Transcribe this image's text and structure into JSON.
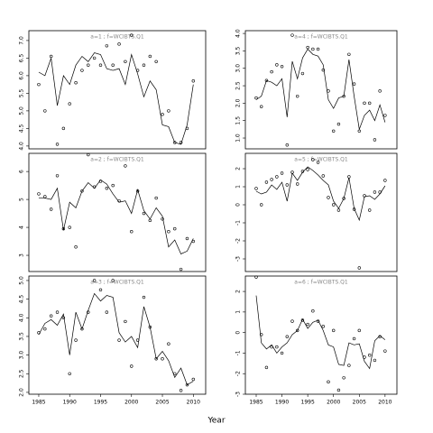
{
  "xlabel": "Year",
  "chart_data": [
    {
      "type": "line",
      "title": "a=1 ; f=WCIBTS.Q1",
      "x": [
        1985,
        1986,
        1987,
        1988,
        1989,
        1990,
        1991,
        1992,
        1993,
        1994,
        1995,
        1996,
        1997,
        1998,
        1999,
        2000,
        2001,
        2002,
        2003,
        2004,
        2005,
        2006,
        2007,
        2008,
        2009,
        2010
      ],
      "series": [
        {
          "style": "points",
          "color": "#000000",
          "values": [
            5.75,
            5.0,
            6.55,
            4.05,
            4.5,
            5.2,
            5.8,
            6.15,
            6.3,
            6.5,
            6.3,
            6.85,
            6.3,
            6.9,
            6.4,
            7.15,
            6.15,
            6.3,
            6.55,
            6.4,
            4.9,
            5.0,
            4.1,
            4.1,
            4.5,
            5.85
          ]
        },
        {
          "style": "line",
          "color": "#000000",
          "values": [
            6.1,
            6.0,
            6.5,
            5.15,
            6.0,
            5.75,
            6.3,
            6.55,
            6.4,
            6.65,
            6.6,
            6.2,
            6.15,
            6.2,
            5.75,
            6.6,
            6.05,
            5.4,
            5.85,
            5.6,
            4.6,
            4.55,
            4.1,
            4.05,
            4.6,
            5.75
          ]
        }
      ],
      "xlim": [
        1983.4,
        2012.0
      ],
      "ylim": [
        3.92,
        7.28
      ],
      "yticks": [
        {
          "value": 4.0,
          "label": "4.0"
        },
        {
          "value": 4.5,
          "label": "4.5"
        },
        {
          "value": 5.0,
          "label": "5.0"
        },
        {
          "value": 5.5,
          "label": "5.5"
        },
        {
          "value": 6.0,
          "label": "6.0"
        },
        {
          "value": 6.5,
          "label": "6.5"
        },
        {
          "value": 7.0,
          "label": "7.0"
        }
      ]
    },
    {
      "type": "line",
      "title": "a=2 ; f=WCIBTS.Q1",
      "x": [
        1985,
        1986,
        1987,
        1988,
        1989,
        1990,
        1991,
        1992,
        1993,
        1994,
        1995,
        1996,
        1997,
        1998,
        1999,
        2000,
        2001,
        2002,
        2003,
        2004,
        2005,
        2006,
        2007,
        2008,
        2009,
        2010
      ],
      "series": [
        {
          "style": "points",
          "color": "#000000",
          "values": [
            5.2,
            5.1,
            4.65,
            5.85,
            3.95,
            4.0,
            3.3,
            5.3,
            6.6,
            5.45,
            5.65,
            5.4,
            5.5,
            4.95,
            6.2,
            3.85,
            5.3,
            4.5,
            4.25,
            5.05,
            4.3,
            3.85,
            3.95,
            2.5,
            3.6,
            3.5
          ]
        },
        {
          "style": "line",
          "color": "#000000",
          "values": [
            5.05,
            5.05,
            5.0,
            5.4,
            3.9,
            4.9,
            4.7,
            5.3,
            5.6,
            5.4,
            5.7,
            5.55,
            5.2,
            4.9,
            4.95,
            4.5,
            5.35,
            4.6,
            4.3,
            4.7,
            4.4,
            3.3,
            3.55,
            3.05,
            3.15,
            3.6
          ]
        }
      ],
      "xlim": [
        1983.4,
        2012.0
      ],
      "ylim": [
        2.42,
        6.65
      ],
      "yticks": [
        3,
        4,
        5,
        6
      ]
    },
    {
      "type": "line",
      "title": "a=3 ; f=WCIBTS.Q1",
      "x": [
        1985,
        1986,
        1987,
        1988,
        1989,
        1990,
        1991,
        1992,
        1993,
        1994,
        1995,
        1996,
        1997,
        1998,
        1999,
        2000,
        2001,
        2002,
        2003,
        2004,
        2005,
        2006,
        2007,
        2008,
        2009,
        2010
      ],
      "series": [
        {
          "style": "points",
          "color": "#000000",
          "values": [
            3.6,
            3.7,
            4.05,
            4.15,
            4.0,
            2.5,
            3.4,
            3.7,
            4.15,
            5.0,
            4.75,
            4.15,
            5.0,
            3.4,
            3.9,
            2.7,
            3.4,
            4.55,
            3.75,
            2.9,
            2.9,
            3.3,
            2.5,
            2.05,
            2.2,
            2.35
          ]
        },
        {
          "style": "line",
          "color": "#000000",
          "values": [
            3.55,
            3.85,
            3.95,
            3.8,
            4.1,
            3.0,
            4.15,
            3.7,
            4.2,
            4.65,
            4.45,
            4.6,
            4.55,
            3.6,
            3.35,
            3.5,
            3.2,
            4.3,
            3.75,
            2.9,
            3.1,
            2.85,
            2.4,
            2.65,
            2.2,
            2.3
          ]
        }
      ],
      "xlim": [
        1983.4,
        2012.0
      ],
      "ylim": [
        1.95,
        5.12
      ],
      "yticks": [
        {
          "value": 2.0,
          "label": "2.0"
        },
        {
          "value": 2.5,
          "label": "2.5"
        },
        {
          "value": 3.0,
          "label": "3.0"
        },
        {
          "value": 3.5,
          "label": "3.5"
        },
        {
          "value": 4.0,
          "label": "4.0"
        },
        {
          "value": 4.5,
          "label": "4.5"
        },
        {
          "value": 5.0,
          "label": "5.0"
        }
      ],
      "xticks": [
        1985,
        1990,
        1995,
        2000,
        2005,
        2010
      ]
    },
    {
      "type": "line",
      "title": "a=4 ; f=WCIBTS.Q1",
      "x": [
        1985,
        1986,
        1987,
        1988,
        1989,
        1990,
        1991,
        1992,
        1993,
        1994,
        1995,
        1996,
        1997,
        1998,
        1999,
        2000,
        2001,
        2002,
        2003,
        2004,
        2005,
        2006,
        2007,
        2008,
        2009,
        2010
      ],
      "series": [
        {
          "style": "points",
          "color": "#000000",
          "values": [
            2.15,
            1.9,
            2.65,
            2.9,
            3.1,
            3.05,
            0.8,
            3.95,
            2.2,
            2.85,
            3.6,
            3.55,
            3.55,
            2.95,
            2.35,
            1.2,
            1.4,
            2.2,
            3.4,
            2.55,
            1.2,
            2.0,
            2.0,
            0.95,
            2.35,
            1.65
          ]
        },
        {
          "style": "line",
          "color": "#000000",
          "values": [
            2.1,
            2.2,
            2.65,
            2.6,
            2.5,
            2.7,
            1.6,
            3.2,
            2.7,
            3.3,
            3.55,
            3.4,
            3.35,
            3.1,
            2.1,
            1.85,
            2.15,
            2.2,
            3.25,
            2.2,
            1.25,
            1.65,
            1.8,
            1.5,
            1.95,
            1.45
          ]
        }
      ],
      "xlim": [
        1982.9,
        2012.3
      ],
      "ylim": [
        0.69,
        4.08
      ],
      "yticks": [
        {
          "value": 1.0,
          "label": "1.0"
        },
        {
          "value": 1.5,
          "label": "1.5"
        },
        {
          "value": 2.0,
          "label": "2.0"
        },
        {
          "value": 2.5,
          "label": "2.5"
        },
        {
          "value": 3.0,
          "label": "3.0"
        },
        {
          "value": 3.5,
          "label": "3.5"
        },
        {
          "value": 4.0,
          "label": "4.0"
        }
      ]
    },
    {
      "type": "line",
      "title": "a=5 ; f=WCIBTS.Q1",
      "x": [
        1985,
        1986,
        1987,
        1988,
        1989,
        1990,
        1991,
        1992,
        1993,
        1994,
        1995,
        1996,
        1997,
        1998,
        1999,
        2000,
        2001,
        2002,
        2003,
        2004,
        2005,
        2006,
        2007,
        2008,
        2009,
        2010
      ],
      "series": [
        {
          "style": "points",
          "color": "#000000",
          "values": [
            0.9,
            0.0,
            1.25,
            1.4,
            1.55,
            1.75,
            1.1,
            1.8,
            1.15,
            1.85,
            1.95,
            2.5,
            2.35,
            1.6,
            0.4,
            0.0,
            -0.3,
            0.35,
            1.55,
            -0.25,
            -3.5,
            0.5,
            -0.3,
            0.7,
            0.7,
            1.35
          ]
        },
        {
          "style": "line",
          "color": "#000000",
          "values": [
            0.75,
            0.6,
            0.7,
            1.1,
            0.85,
            1.25,
            0.2,
            1.75,
            1.35,
            1.8,
            2.1,
            1.9,
            1.65,
            1.35,
            1.1,
            0.2,
            -0.2,
            0.35,
            1.5,
            -0.2,
            -0.85,
            0.45,
            0.5,
            0.3,
            0.6,
            1.05
          ]
        }
      ],
      "xlim": [
        1982.9,
        2012.3
      ],
      "ylim": [
        -3.7,
        2.85
      ],
      "yticks": [
        -3,
        -2,
        -1,
        0,
        1,
        2
      ]
    },
    {
      "type": "line",
      "title": "a=6 ; f=WCIBTS.Q1",
      "x": [
        1985,
        1986,
        1987,
        1988,
        1989,
        1990,
        1991,
        1992,
        1993,
        1994,
        1995,
        1996,
        1997,
        1998,
        1999,
        2000,
        2001,
        2002,
        2003,
        2004,
        2005,
        2006,
        2007,
        2008,
        2009,
        2010
      ],
      "series": [
        {
          "style": "points",
          "color": "#000000",
          "values": [
            2.7,
            -0.1,
            -1.7,
            -0.7,
            -0.7,
            -1.0,
            -0.2,
            0.55,
            0.1,
            0.6,
            0.4,
            1.05,
            0.55,
            0.3,
            -2.4,
            0.1,
            -2.8,
            -2.2,
            -1.6,
            -0.3,
            0.1,
            -1.2,
            -1.1,
            -1.35,
            -0.2,
            -0.9
          ]
        },
        {
          "style": "line",
          "color": "#000000",
          "values": [
            1.8,
            -0.5,
            -0.8,
            -0.6,
            -1.0,
            -0.7,
            -0.5,
            -0.1,
            0.1,
            0.65,
            0.2,
            0.5,
            0.6,
            0.1,
            -0.6,
            -0.7,
            -1.55,
            -1.6,
            -0.5,
            -0.6,
            -0.55,
            -1.4,
            -1.75,
            -0.4,
            -0.15,
            -0.35
          ]
        }
      ],
      "xlim": [
        1982.9,
        2012.3
      ],
      "ylim": [
        -3.0,
        2.75
      ],
      "yticks": [
        -3,
        -2,
        -1,
        0,
        1,
        2
      ],
      "xticks": [
        1985,
        1990,
        1995,
        2000,
        2005,
        2010
      ]
    }
  ]
}
